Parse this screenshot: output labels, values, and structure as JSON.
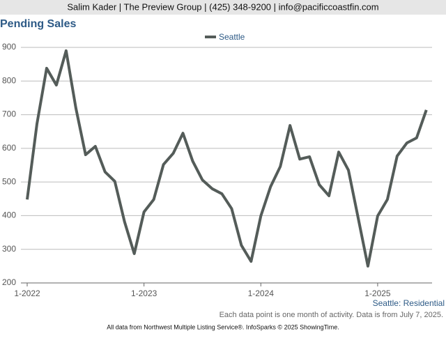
{
  "header": "Salim Kader | The Preview Group | (425) 348-9200 | info@pacificcoastfin.com",
  "chart_data": {
    "type": "line",
    "title": "Pending Sales",
    "categories": [
      "1-2022",
      null,
      null,
      null,
      null,
      null,
      null,
      null,
      null,
      null,
      null,
      null,
      "1-2023",
      null,
      null,
      null,
      null,
      null,
      null,
      null,
      null,
      null,
      null,
      null,
      "1-2024",
      null,
      null,
      null,
      null,
      null,
      null,
      null,
      null,
      null,
      null,
      null,
      "1-2025",
      null,
      null,
      null,
      null,
      null
    ],
    "series": [
      {
        "name": "Seattle",
        "color": "#545c59",
        "values": [
          448,
          672,
          838,
          788,
          890,
          720,
          581,
          606,
          530,
          502,
          382,
          287,
          411,
          448,
          552,
          585,
          645,
          562,
          506,
          480,
          465,
          421,
          312,
          264,
          399,
          486,
          546,
          668,
          568,
          575,
          492,
          459,
          589,
          535,
          393,
          250,
          399,
          448,
          577,
          616,
          631,
          714
        ]
      }
    ],
    "ylim": [
      200,
      900
    ],
    "yticks": [
      200,
      300,
      400,
      500,
      600,
      700,
      800,
      900
    ],
    "grid": true,
    "legend": "top",
    "subtitle": "Seattle: Residential",
    "note": "Each data point is one month of activity. Data is from July 7, 2025.",
    "source": "All data from Northwest Multiple Listing Service®. InfoSparks © 2025 ShowingTime."
  }
}
